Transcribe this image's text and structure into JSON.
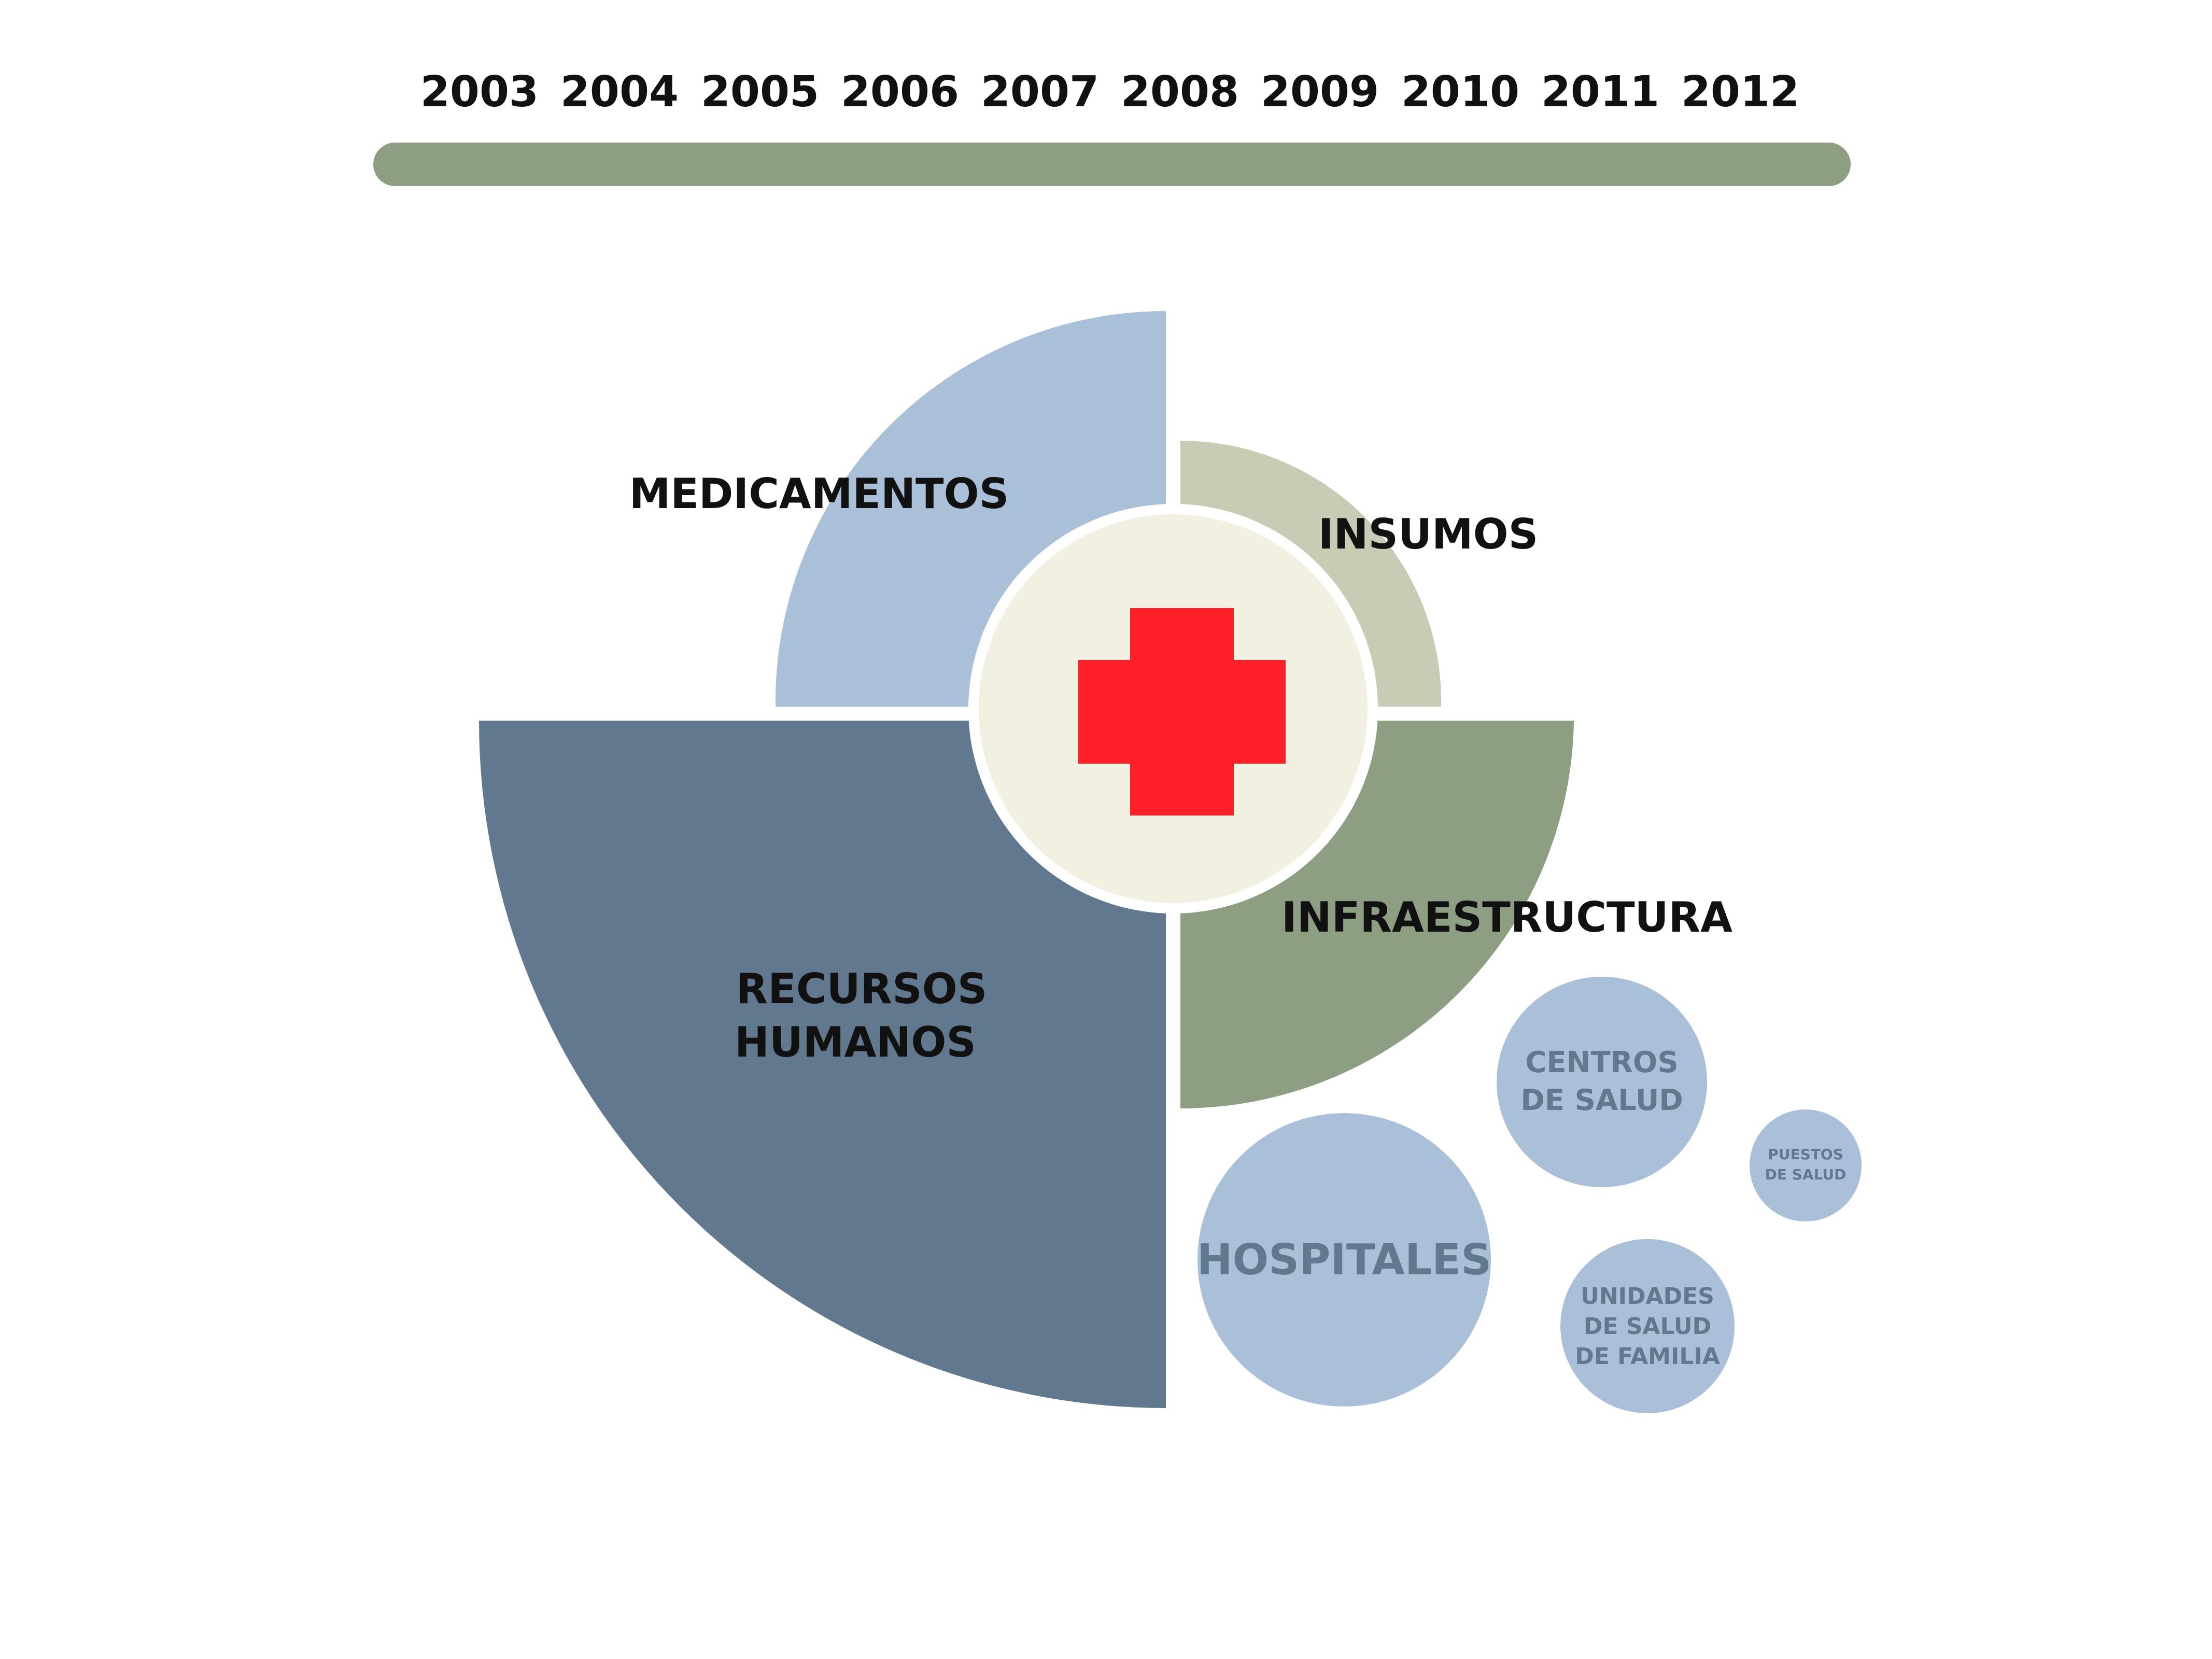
{
  "timeline": {
    "years": [
      "2003",
      "2004",
      "2005",
      "2006",
      "2007",
      "2008",
      "2009",
      "2010",
      "2011",
      "2012"
    ]
  },
  "segments": {
    "medicamentos": "MEDICAMENTOS",
    "insumos": "INSUMOS",
    "infraestructura": "INFRAESTRUCTURA",
    "recursos_humanos": [
      "RECURSOS",
      "HUMANOS"
    ]
  },
  "bubbles": {
    "hospitales": "HOSPITALES",
    "centros_de_salud": [
      "CENTROS",
      "DE SALUD"
    ],
    "unidades_de_salud": [
      "UNIDADES",
      "DE SALUD",
      "DE FAMILIA"
    ],
    "puestos_de_salud": [
      "PUESTOS",
      "DE SALUD"
    ]
  },
  "colors": {
    "timeline_bar": "#8e9e82",
    "medicamentos": "#aac0d8",
    "insumos": "#c9ccb4",
    "infraestructura": "#8e9e82",
    "recursos_humanos": "#62788f",
    "center_disc": "#f2f1e1",
    "cross": "#ff1f27",
    "bubble_fill": "#aac0d8",
    "bubble_text": "#62788f"
  },
  "icons": {
    "center": "red-cross-icon"
  }
}
